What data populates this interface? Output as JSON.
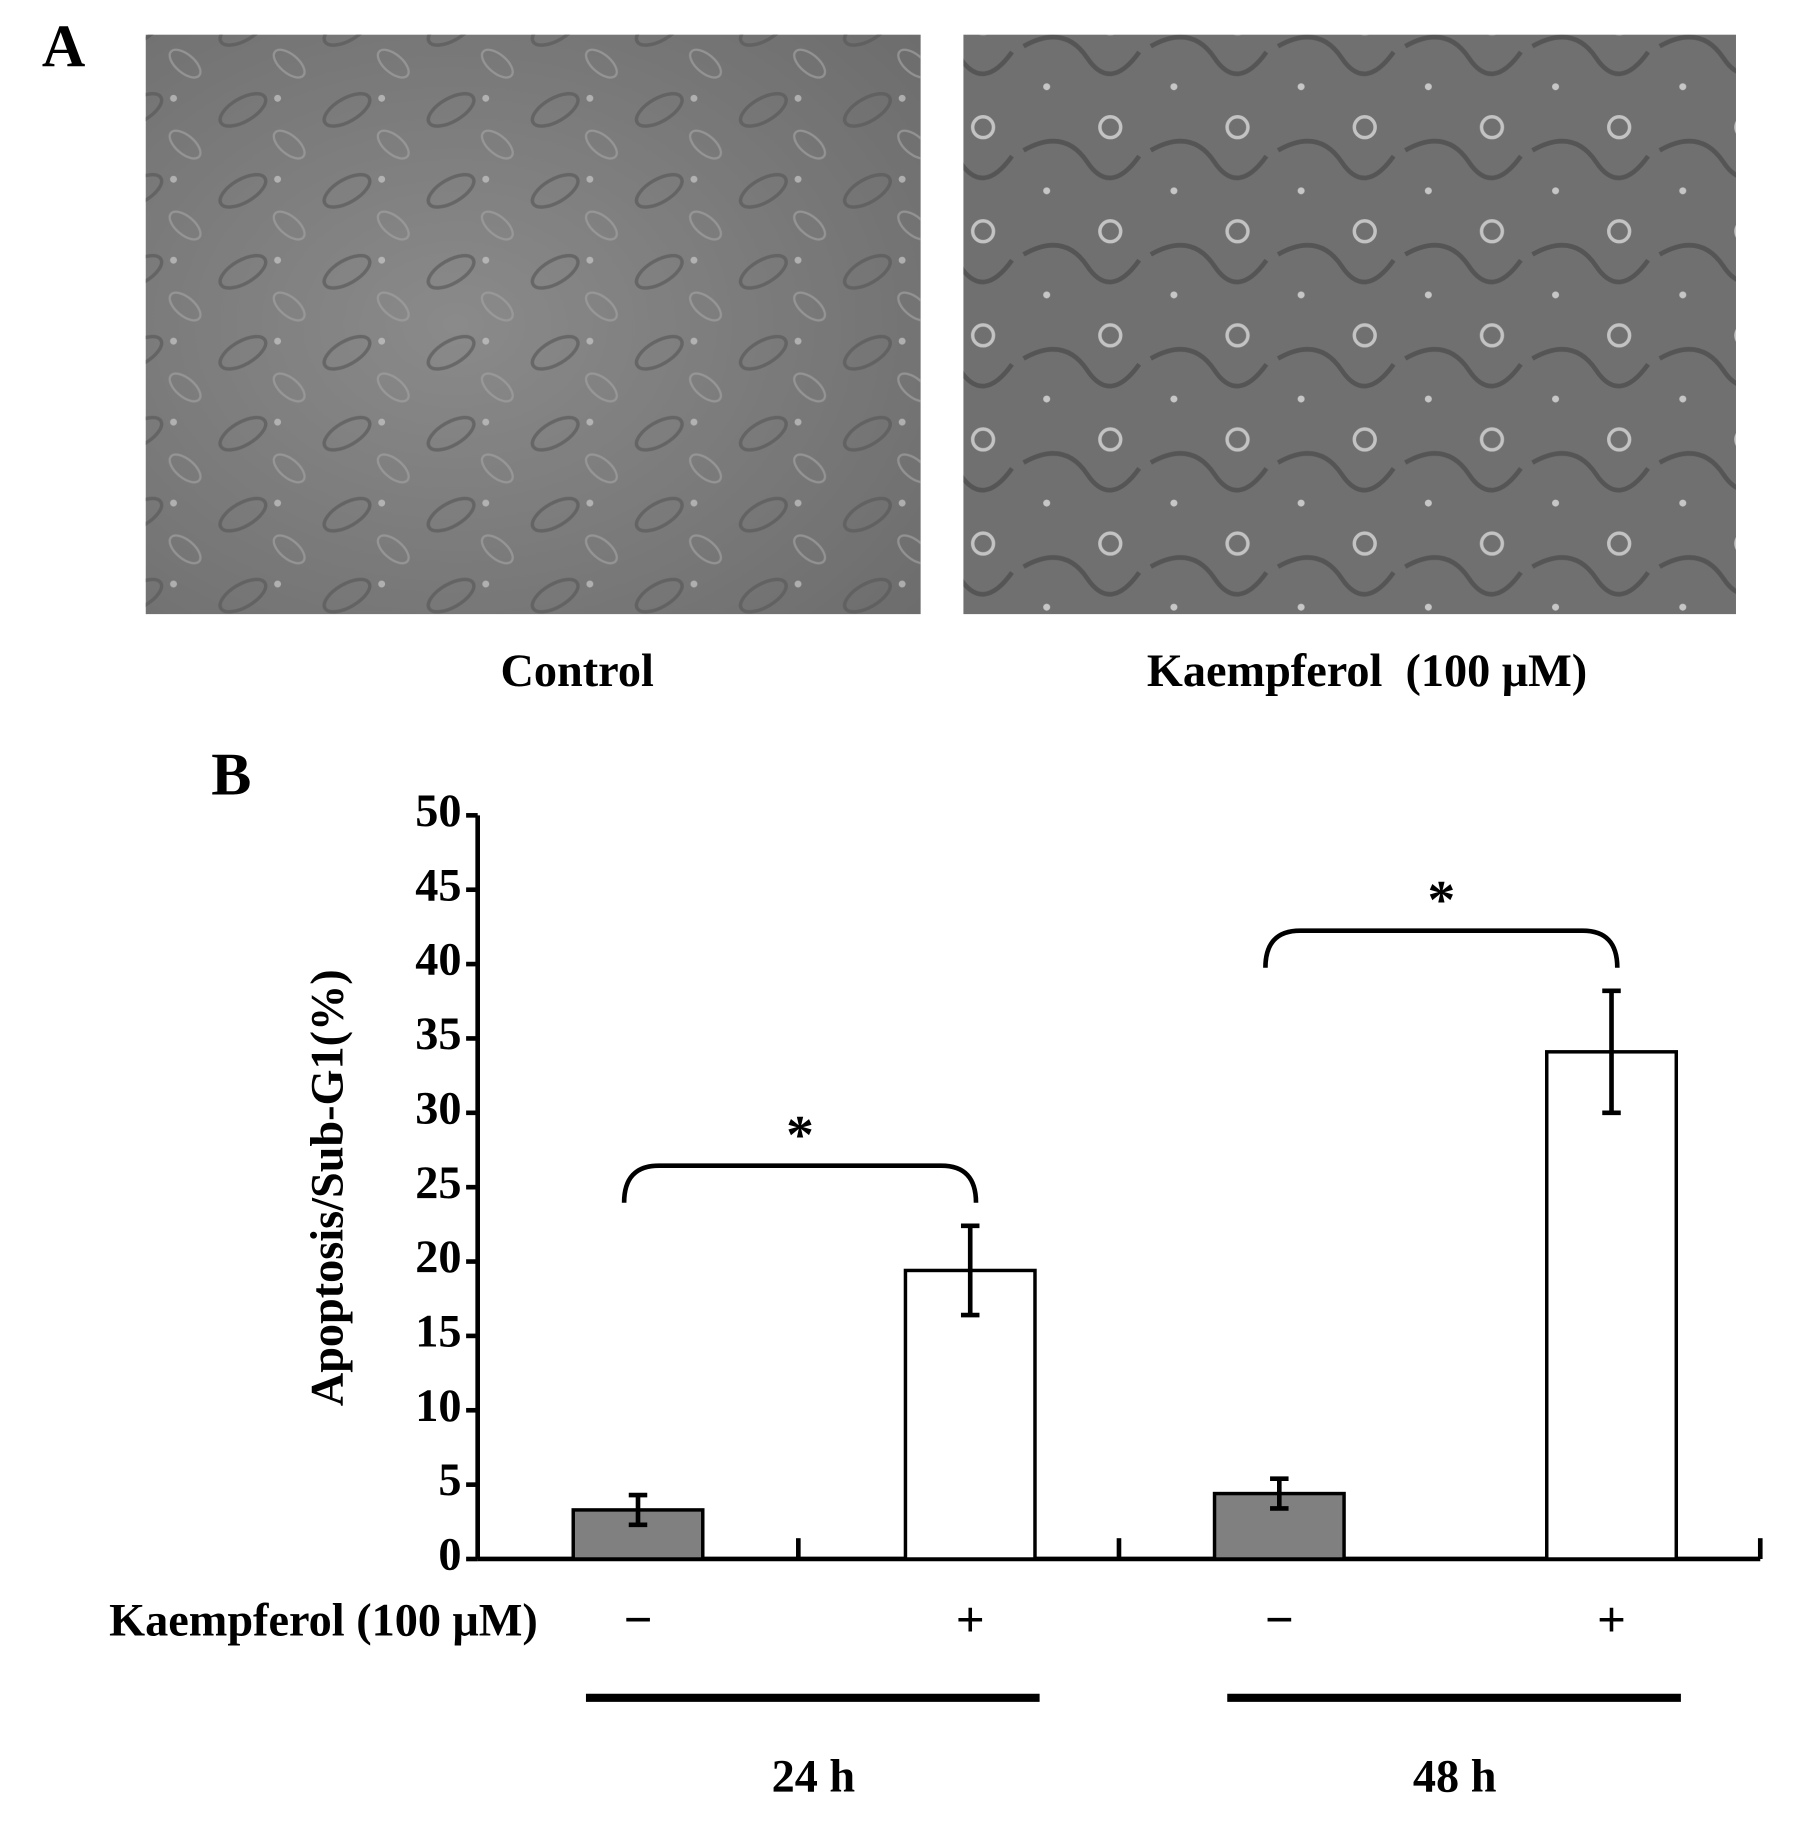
{
  "panel_a": {
    "label": "A",
    "images": [
      {
        "caption": "Control"
      },
      {
        "caption": "Kaempferol  (100 μM)"
      }
    ]
  },
  "chart_data": {
    "type": "bar",
    "panel_label": "B",
    "y_label": "Apoptosis/Sub-G1(%)",
    "treatment_label": "Kaempferol (100 μM)",
    "categories": [
      "−",
      "+",
      "−",
      "+"
    ],
    "groups": [
      "24 h",
      "48 h"
    ],
    "series": [
      {
        "values": [
          3.3,
          19.4,
          4.4,
          34.1
        ],
        "errors": [
          1.0,
          3.0,
          1.0,
          4.1
        ],
        "colors": [
          "#808080",
          "#ffffff",
          "#808080",
          "#ffffff"
        ]
      }
    ],
    "annotations": [
      "*",
      "*"
    ],
    "ylim": [
      0,
      50
    ],
    "yticks": [
      0,
      5,
      10,
      15,
      20,
      25,
      30,
      35,
      40,
      45,
      50
    ]
  }
}
